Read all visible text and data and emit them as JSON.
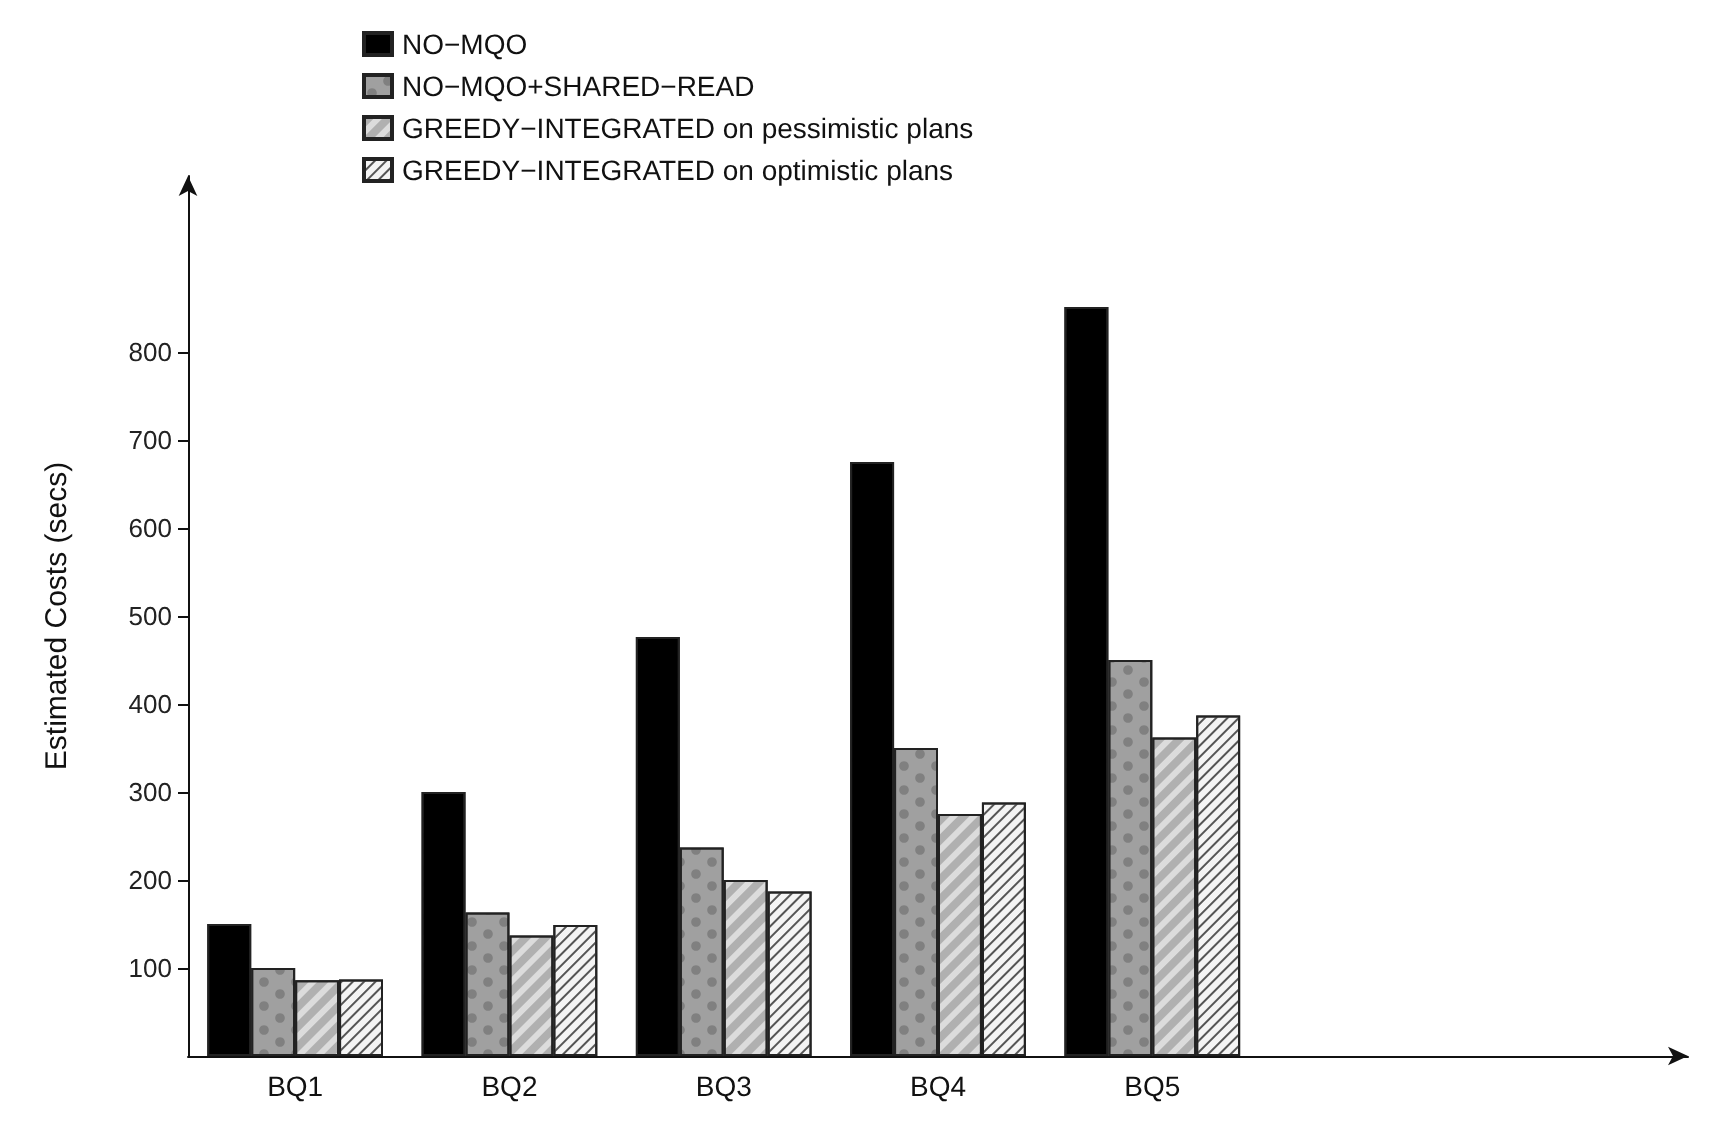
{
  "chart_data": {
    "type": "bar",
    "ylabel": "Estimated Costs (secs)",
    "categories": [
      "BQ1",
      "BQ2",
      "BQ3",
      "BQ4",
      "BQ5",
      null,
      null
    ],
    "series": [
      {
        "name": "NO−MQO",
        "color": "#000000",
        "values": [
          150,
          300,
          476,
          675,
          851,
          null,
          null
        ]
      },
      {
        "name": "NO−MQO+SHARED−READ",
        "color": "#a0a0a0",
        "values": [
          100,
          163,
          237,
          350,
          450,
          null,
          null
        ]
      },
      {
        "name": "GREEDY−INTEGRATED on pessimistic plans",
        "color": "#dcdcdc",
        "values": [
          86,
          137,
          200,
          275,
          362,
          null,
          null
        ]
      },
      {
        "name": "GREEDY−INTEGRATED on optimistic plans",
        "color": "#f4f4f4",
        "values": [
          87,
          149,
          187,
          288,
          387,
          null,
          null
        ]
      }
    ],
    "ylim": [
      0,
      1000
    ],
    "yticks": [
      100,
      200,
      300,
      400,
      500,
      600,
      700,
      800
    ],
    "grid": false,
    "legend": "top left"
  }
}
